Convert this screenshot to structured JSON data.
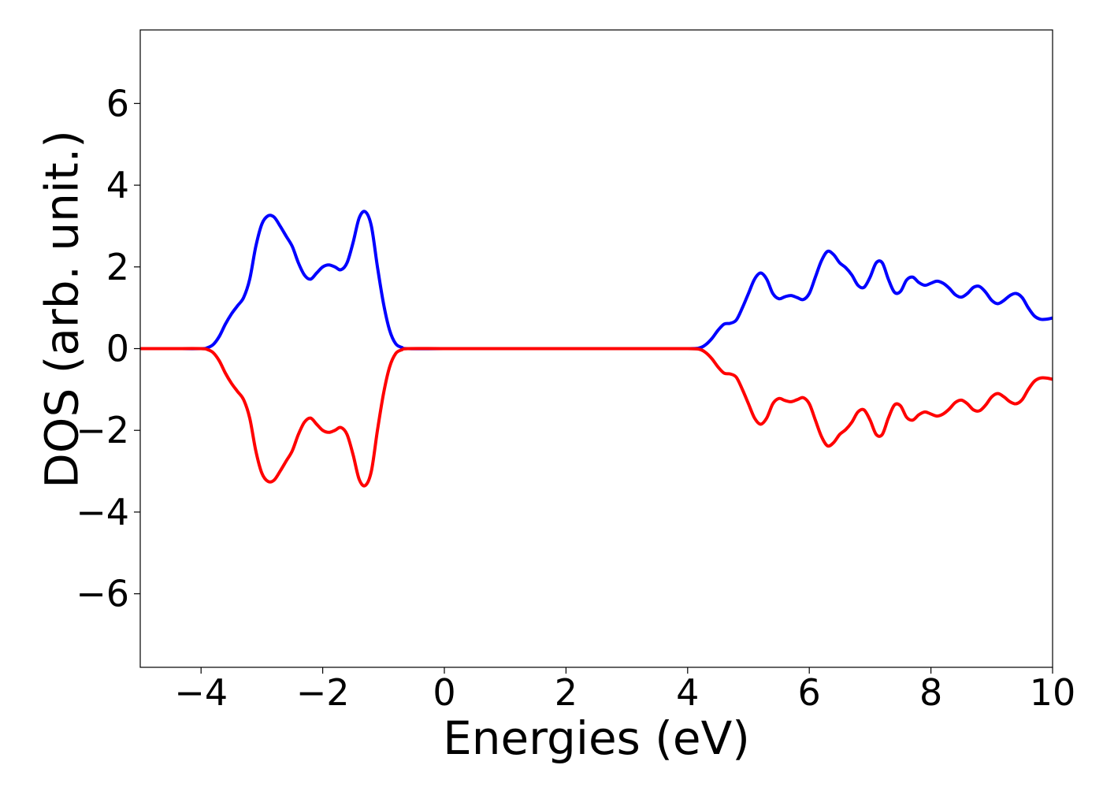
{
  "chart_data": {
    "type": "line",
    "title": "",
    "xlabel": "Energies (eV)",
    "ylabel": "DOS (arb. unit.)",
    "xlim": [
      -5,
      10
    ],
    "ylim": [
      -7.8,
      7.8
    ],
    "xticks": [
      -4,
      -2,
      0,
      2,
      4,
      6,
      8,
      10
    ],
    "yticks": [
      -6,
      -4,
      -2,
      0,
      2,
      4,
      6
    ],
    "xtick_labels": [
      "−4",
      "−2",
      "0",
      "2",
      "4",
      "6",
      "8",
      "10"
    ],
    "ytick_labels": [
      "−6",
      "−4",
      "−2",
      "0",
      "2",
      "4",
      "6"
    ],
    "grid": false,
    "legend": "none",
    "series": [
      {
        "color": "#0000ff",
        "points": [
          [
            -5.0,
            0
          ],
          [
            -4.5,
            0
          ],
          [
            -4.0,
            0
          ],
          [
            -3.9,
            0.02
          ],
          [
            -3.8,
            0.1
          ],
          [
            -3.7,
            0.3
          ],
          [
            -3.6,
            0.6
          ],
          [
            -3.5,
            0.85
          ],
          [
            -3.4,
            1.05
          ],
          [
            -3.3,
            1.25
          ],
          [
            -3.2,
            1.7
          ],
          [
            -3.1,
            2.5
          ],
          [
            -3.0,
            3.05
          ],
          [
            -2.9,
            3.25
          ],
          [
            -2.8,
            3.22
          ],
          [
            -2.7,
            3.0
          ],
          [
            -2.6,
            2.75
          ],
          [
            -2.5,
            2.5
          ],
          [
            -2.4,
            2.1
          ],
          [
            -2.3,
            1.8
          ],
          [
            -2.2,
            1.7
          ],
          [
            -2.1,
            1.85
          ],
          [
            -2.0,
            2.0
          ],
          [
            -1.9,
            2.05
          ],
          [
            -1.8,
            2.0
          ],
          [
            -1.7,
            1.93
          ],
          [
            -1.6,
            2.1
          ],
          [
            -1.5,
            2.6
          ],
          [
            -1.4,
            3.2
          ],
          [
            -1.3,
            3.35
          ],
          [
            -1.2,
            3.0
          ],
          [
            -1.1,
            2.0
          ],
          [
            -1.0,
            1.1
          ],
          [
            -0.9,
            0.45
          ],
          [
            -0.8,
            0.12
          ],
          [
            -0.7,
            0.03
          ],
          [
            -0.6,
            0
          ],
          [
            0.0,
            0
          ],
          [
            1.0,
            0
          ],
          [
            2.0,
            0
          ],
          [
            3.0,
            0
          ],
          [
            4.0,
            0
          ],
          [
            4.2,
            0.02
          ],
          [
            4.3,
            0.1
          ],
          [
            4.4,
            0.25
          ],
          [
            4.5,
            0.45
          ],
          [
            4.6,
            0.6
          ],
          [
            4.7,
            0.62
          ],
          [
            4.8,
            0.7
          ],
          [
            4.9,
            1.0
          ],
          [
            5.0,
            1.35
          ],
          [
            5.1,
            1.7
          ],
          [
            5.2,
            1.85
          ],
          [
            5.3,
            1.7
          ],
          [
            5.4,
            1.35
          ],
          [
            5.5,
            1.22
          ],
          [
            5.6,
            1.27
          ],
          [
            5.7,
            1.3
          ],
          [
            5.8,
            1.25
          ],
          [
            5.9,
            1.2
          ],
          [
            6.0,
            1.35
          ],
          [
            6.1,
            1.75
          ],
          [
            6.2,
            2.15
          ],
          [
            6.3,
            2.38
          ],
          [
            6.4,
            2.3
          ],
          [
            6.5,
            2.1
          ],
          [
            6.6,
            1.98
          ],
          [
            6.7,
            1.8
          ],
          [
            6.8,
            1.55
          ],
          [
            6.9,
            1.5
          ],
          [
            7.0,
            1.75
          ],
          [
            7.1,
            2.1
          ],
          [
            7.2,
            2.1
          ],
          [
            7.3,
            1.7
          ],
          [
            7.4,
            1.38
          ],
          [
            7.5,
            1.4
          ],
          [
            7.6,
            1.68
          ],
          [
            7.7,
            1.75
          ],
          [
            7.8,
            1.62
          ],
          [
            7.9,
            1.55
          ],
          [
            8.0,
            1.6
          ],
          [
            8.1,
            1.65
          ],
          [
            8.2,
            1.6
          ],
          [
            8.3,
            1.48
          ],
          [
            8.4,
            1.32
          ],
          [
            8.5,
            1.26
          ],
          [
            8.6,
            1.35
          ],
          [
            8.7,
            1.5
          ],
          [
            8.8,
            1.52
          ],
          [
            8.9,
            1.38
          ],
          [
            9.0,
            1.18
          ],
          [
            9.1,
            1.1
          ],
          [
            9.2,
            1.18
          ],
          [
            9.3,
            1.3
          ],
          [
            9.4,
            1.35
          ],
          [
            9.5,
            1.25
          ],
          [
            9.6,
            1.0
          ],
          [
            9.7,
            0.8
          ],
          [
            9.8,
            0.72
          ],
          [
            9.9,
            0.72
          ],
          [
            10.0,
            0.75
          ]
        ]
      },
      {
        "color": "#ff0000",
        "points": [
          [
            -5.0,
            0
          ],
          [
            -4.5,
            0
          ],
          [
            -4.0,
            0
          ],
          [
            -3.9,
            -0.02
          ],
          [
            -3.8,
            -0.1
          ],
          [
            -3.7,
            -0.3
          ],
          [
            -3.6,
            -0.6
          ],
          [
            -3.5,
            -0.85
          ],
          [
            -3.4,
            -1.05
          ],
          [
            -3.3,
            -1.25
          ],
          [
            -3.2,
            -1.7
          ],
          [
            -3.1,
            -2.5
          ],
          [
            -3.0,
            -3.05
          ],
          [
            -2.9,
            -3.25
          ],
          [
            -2.8,
            -3.22
          ],
          [
            -2.7,
            -3.0
          ],
          [
            -2.6,
            -2.75
          ],
          [
            -2.5,
            -2.5
          ],
          [
            -2.4,
            -2.1
          ],
          [
            -2.3,
            -1.8
          ],
          [
            -2.2,
            -1.7
          ],
          [
            -2.1,
            -1.85
          ],
          [
            -2.0,
            -2.0
          ],
          [
            -1.9,
            -2.05
          ],
          [
            -1.8,
            -2.0
          ],
          [
            -1.7,
            -1.93
          ],
          [
            -1.6,
            -2.1
          ],
          [
            -1.5,
            -2.6
          ],
          [
            -1.4,
            -3.2
          ],
          [
            -1.3,
            -3.35
          ],
          [
            -1.2,
            -3.0
          ],
          [
            -1.1,
            -2.0
          ],
          [
            -1.0,
            -1.1
          ],
          [
            -0.9,
            -0.45
          ],
          [
            -0.8,
            -0.12
          ],
          [
            -0.7,
            -0.03
          ],
          [
            -0.6,
            0
          ],
          [
            0.0,
            0
          ],
          [
            1.0,
            0
          ],
          [
            2.0,
            0
          ],
          [
            3.0,
            0
          ],
          [
            4.0,
            0
          ],
          [
            4.2,
            -0.02
          ],
          [
            4.3,
            -0.1
          ],
          [
            4.4,
            -0.25
          ],
          [
            4.5,
            -0.45
          ],
          [
            4.6,
            -0.6
          ],
          [
            4.7,
            -0.62
          ],
          [
            4.8,
            -0.7
          ],
          [
            4.9,
            -1.0
          ],
          [
            5.0,
            -1.35
          ],
          [
            5.1,
            -1.7
          ],
          [
            5.2,
            -1.85
          ],
          [
            5.3,
            -1.7
          ],
          [
            5.4,
            -1.35
          ],
          [
            5.5,
            -1.22
          ],
          [
            5.6,
            -1.27
          ],
          [
            5.7,
            -1.3
          ],
          [
            5.8,
            -1.25
          ],
          [
            5.9,
            -1.2
          ],
          [
            6.0,
            -1.35
          ],
          [
            6.1,
            -1.75
          ],
          [
            6.2,
            -2.15
          ],
          [
            6.3,
            -2.38
          ],
          [
            6.4,
            -2.3
          ],
          [
            6.5,
            -2.1
          ],
          [
            6.6,
            -1.98
          ],
          [
            6.7,
            -1.8
          ],
          [
            6.8,
            -1.55
          ],
          [
            6.9,
            -1.5
          ],
          [
            7.0,
            -1.75
          ],
          [
            7.1,
            -2.1
          ],
          [
            7.2,
            -2.1
          ],
          [
            7.3,
            -1.7
          ],
          [
            7.4,
            -1.38
          ],
          [
            7.5,
            -1.4
          ],
          [
            7.6,
            -1.68
          ],
          [
            7.7,
            -1.75
          ],
          [
            7.8,
            -1.62
          ],
          [
            7.9,
            -1.55
          ],
          [
            8.0,
            -1.6
          ],
          [
            8.1,
            -1.65
          ],
          [
            8.2,
            -1.6
          ],
          [
            8.3,
            -1.48
          ],
          [
            8.4,
            -1.32
          ],
          [
            8.5,
            -1.26
          ],
          [
            8.6,
            -1.35
          ],
          [
            8.7,
            -1.5
          ],
          [
            8.8,
            -1.52
          ],
          [
            8.9,
            -1.38
          ],
          [
            9.0,
            -1.18
          ],
          [
            9.1,
            -1.1
          ],
          [
            9.2,
            -1.18
          ],
          [
            9.3,
            -1.3
          ],
          [
            9.4,
            -1.35
          ],
          [
            9.5,
            -1.25
          ],
          [
            9.6,
            -1.0
          ],
          [
            9.7,
            -0.8
          ],
          [
            9.8,
            -0.72
          ],
          [
            9.9,
            -0.72
          ],
          [
            10.0,
            -0.75
          ]
        ]
      }
    ]
  }
}
